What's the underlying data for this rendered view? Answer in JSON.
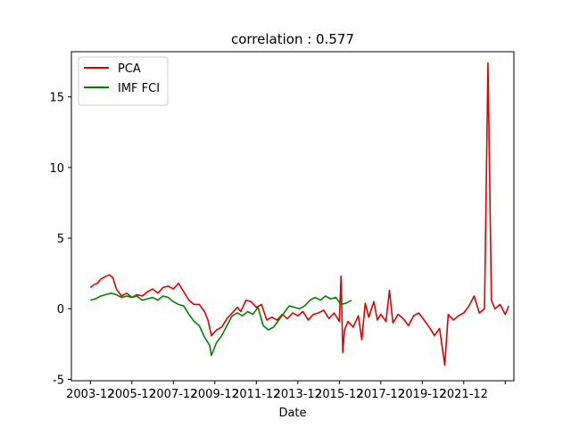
{
  "chart_data": {
    "type": "line",
    "title": "correlation : 0.577",
    "xlabel": "Date",
    "ylabel": "",
    "xlim": [
      "2003-01",
      "2024-05"
    ],
    "ylim": [
      -5.1,
      18.2
    ],
    "grid": false,
    "legend_position": "top-left",
    "x_ticks": [
      "2003-12",
      "2005-12",
      "2007-12",
      "2009-12",
      "2011-12",
      "2013-12",
      "2015-12",
      "2017-12",
      "2019-12",
      "2021-12",
      ""
    ],
    "y_ticks": [
      "-5",
      "0",
      "5",
      "10",
      "15"
    ],
    "series": [
      {
        "name": "PCA",
        "color": "#e00000",
        "points": [
          [
            "2003-12",
            1.5
          ],
          [
            "2004-02",
            1.7
          ],
          [
            "2004-04",
            1.8
          ],
          [
            "2004-06",
            2.1
          ],
          [
            "2004-09",
            2.3
          ],
          [
            "2004-11",
            2.4
          ],
          [
            "2005-01",
            2.2
          ],
          [
            "2005-03",
            1.4
          ],
          [
            "2005-06",
            0.9
          ],
          [
            "2005-09",
            1.1
          ],
          [
            "2005-12",
            0.8
          ],
          [
            "2006-03",
            1.0
          ],
          [
            "2006-06",
            0.9
          ],
          [
            "2006-09",
            1.2
          ],
          [
            "2006-12",
            1.4
          ],
          [
            "2007-03",
            1.1
          ],
          [
            "2007-06",
            1.5
          ],
          [
            "2007-09",
            1.6
          ],
          [
            "2007-12",
            1.4
          ],
          [
            "2008-03",
            1.8
          ],
          [
            "2008-06",
            1.2
          ],
          [
            "2008-09",
            0.6
          ],
          [
            "2008-12",
            0.3
          ],
          [
            "2009-03",
            0.3
          ],
          [
            "2009-06",
            -0.2
          ],
          [
            "2009-08",
            -0.8
          ],
          [
            "2009-10",
            -1.9
          ],
          [
            "2010-01",
            -1.5
          ],
          [
            "2010-04",
            -1.3
          ],
          [
            "2010-07",
            -0.7
          ],
          [
            "2010-10",
            -0.3
          ],
          [
            "2011-01",
            0.1
          ],
          [
            "2011-03",
            -0.2
          ],
          [
            "2011-06",
            0.6
          ],
          [
            "2011-09",
            0.5
          ],
          [
            "2011-12",
            0.1
          ],
          [
            "2012-03",
            0.3
          ],
          [
            "2012-06",
            -0.8
          ],
          [
            "2012-09",
            -0.6
          ],
          [
            "2012-12",
            -0.8
          ],
          [
            "2013-03",
            -0.4
          ],
          [
            "2013-06",
            -0.7
          ],
          [
            "2013-09",
            -0.3
          ],
          [
            "2013-12",
            -0.5
          ],
          [
            "2014-03",
            -0.2
          ],
          [
            "2014-06",
            -0.8
          ],
          [
            "2014-09",
            -0.4
          ],
          [
            "2014-12",
            -0.3
          ],
          [
            "2015-03",
            -0.1
          ],
          [
            "2015-06",
            -0.7
          ],
          [
            "2015-09",
            -0.3
          ],
          [
            "2015-12",
            -0.9
          ],
          [
            "2016-01",
            2.3
          ],
          [
            "2016-02",
            -3.1
          ],
          [
            "2016-03",
            -1.5
          ],
          [
            "2016-05",
            -0.9
          ],
          [
            "2016-08",
            -1.3
          ],
          [
            "2016-11",
            -0.5
          ],
          [
            "2017-01",
            -2.2
          ],
          [
            "2017-03",
            0.4
          ],
          [
            "2017-05",
            -0.6
          ],
          [
            "2017-08",
            0.5
          ],
          [
            "2017-10",
            -0.8
          ],
          [
            "2017-12",
            -0.4
          ],
          [
            "2018-03",
            -0.9
          ],
          [
            "2018-05",
            1.3
          ],
          [
            "2018-07",
            -1.0
          ],
          [
            "2018-10",
            -0.4
          ],
          [
            "2019-01",
            -0.7
          ],
          [
            "2019-04",
            -1.2
          ],
          [
            "2019-07",
            -0.5
          ],
          [
            "2019-10",
            -0.3
          ],
          [
            "2020-01",
            -0.8
          ],
          [
            "2020-04",
            -1.3
          ],
          [
            "2020-07",
            -1.9
          ],
          [
            "2020-10",
            -1.4
          ],
          [
            "2021-01",
            -4.0
          ],
          [
            "2021-03",
            -0.4
          ],
          [
            "2021-06",
            -0.8
          ],
          [
            "2021-09",
            -0.5
          ],
          [
            "2021-12",
            -0.3
          ],
          [
            "2022-03",
            0.2
          ],
          [
            "2022-06",
            0.9
          ],
          [
            "2022-09",
            -0.3
          ],
          [
            "2022-12",
            0.0
          ],
          [
            "2023-02",
            17.4
          ],
          [
            "2023-04",
            0.6
          ],
          [
            "2023-06",
            0.0
          ],
          [
            "2023-09",
            0.3
          ],
          [
            "2023-12",
            -0.4
          ],
          [
            "2024-02",
            0.2
          ]
        ]
      },
      {
        "name": "IMF FCI",
        "color": "#008000",
        "points": [
          [
            "2003-12",
            0.6
          ],
          [
            "2004-03",
            0.7
          ],
          [
            "2004-06",
            0.9
          ],
          [
            "2004-09",
            1.0
          ],
          [
            "2004-12",
            1.1
          ],
          [
            "2005-03",
            1.0
          ],
          [
            "2005-06",
            0.8
          ],
          [
            "2005-09",
            0.9
          ],
          [
            "2005-12",
            0.8
          ],
          [
            "2006-03",
            0.9
          ],
          [
            "2006-06",
            0.6
          ],
          [
            "2006-09",
            0.7
          ],
          [
            "2006-12",
            0.8
          ],
          [
            "2007-03",
            0.6
          ],
          [
            "2007-06",
            0.9
          ],
          [
            "2007-09",
            0.8
          ],
          [
            "2007-12",
            0.5
          ],
          [
            "2008-03",
            0.3
          ],
          [
            "2008-06",
            0.2
          ],
          [
            "2008-09",
            -0.4
          ],
          [
            "2008-12",
            -0.9
          ],
          [
            "2009-03",
            -1.2
          ],
          [
            "2009-06",
            -2.0
          ],
          [
            "2009-09",
            -2.6
          ],
          [
            "2009-10",
            -3.3
          ],
          [
            "2010-01",
            -2.4
          ],
          [
            "2010-04",
            -1.9
          ],
          [
            "2010-07",
            -1.2
          ],
          [
            "2010-10",
            -0.5
          ],
          [
            "2011-01",
            -0.3
          ],
          [
            "2011-04",
            -0.5
          ],
          [
            "2011-07",
            -0.2
          ],
          [
            "2011-10",
            -0.4
          ],
          [
            "2012-01",
            0.1
          ],
          [
            "2012-04",
            -1.2
          ],
          [
            "2012-07",
            -1.5
          ],
          [
            "2012-10",
            -1.3
          ],
          [
            "2013-01",
            -0.8
          ],
          [
            "2013-04",
            -0.3
          ],
          [
            "2013-07",
            0.2
          ],
          [
            "2013-10",
            0.1
          ],
          [
            "2014-01",
            0.0
          ],
          [
            "2014-04",
            0.2
          ],
          [
            "2014-07",
            0.6
          ],
          [
            "2014-10",
            0.8
          ],
          [
            "2015-01",
            0.6
          ],
          [
            "2015-04",
            0.9
          ],
          [
            "2015-07",
            0.7
          ],
          [
            "2015-10",
            0.8
          ],
          [
            "2016-01",
            0.3
          ],
          [
            "2016-04",
            0.4
          ],
          [
            "2016-07",
            0.6
          ]
        ]
      }
    ]
  }
}
